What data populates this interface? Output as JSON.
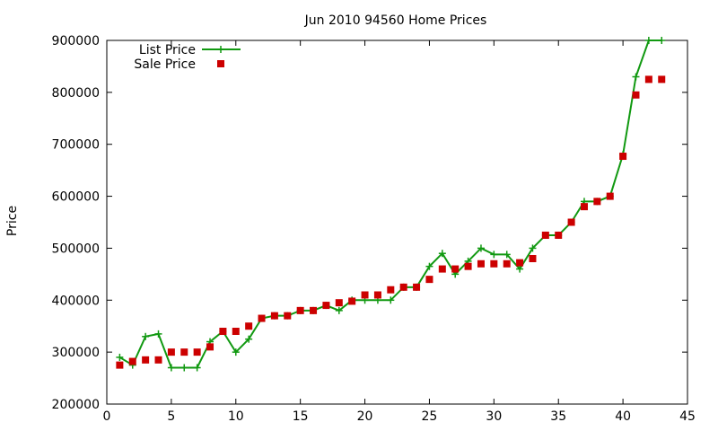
{
  "chart_data": {
    "type": "line",
    "title": "Jun 2010 94560 Home Prices",
    "xlabel": "",
    "ylabel": "Price",
    "xlim": [
      0,
      45
    ],
    "ylim": [
      200000,
      900000
    ],
    "xticks": [
      0,
      5,
      10,
      15,
      20,
      25,
      30,
      35,
      40,
      45
    ],
    "yticks": [
      200000,
      300000,
      400000,
      500000,
      600000,
      700000,
      800000,
      900000
    ],
    "grid": false,
    "legend_position": "top-left",
    "series": [
      {
        "name": "List Price",
        "style": "line+cross",
        "color": "#119911",
        "x": [
          1,
          2,
          3,
          4,
          5,
          6,
          7,
          8,
          9,
          10,
          11,
          12,
          13,
          14,
          15,
          16,
          17,
          18,
          19,
          20,
          21,
          22,
          23,
          24,
          25,
          26,
          27,
          28,
          29,
          30,
          31,
          32,
          33,
          34,
          35,
          36,
          37,
          38,
          39,
          40,
          41,
          42,
          43
        ],
        "y": [
          290000,
          275000,
          330000,
          335000,
          270000,
          270000,
          270000,
          320000,
          340000,
          300000,
          325000,
          365000,
          370000,
          370000,
          380000,
          380000,
          390000,
          380000,
          400000,
          400000,
          400000,
          400000,
          425000,
          425000,
          465000,
          490000,
          450000,
          475000,
          500000,
          488000,
          488000,
          460000,
          500000,
          525000,
          525000,
          550000,
          590000,
          590000,
          600000,
          680000,
          830000,
          900000,
          900000
        ]
      },
      {
        "name": "Sale Price",
        "style": "square-points",
        "color": "#cc0000",
        "x": [
          1,
          2,
          3,
          4,
          5,
          6,
          7,
          8,
          9,
          10,
          11,
          12,
          13,
          14,
          15,
          16,
          17,
          18,
          19,
          20,
          21,
          22,
          23,
          24,
          25,
          26,
          27,
          28,
          29,
          30,
          31,
          32,
          33,
          34,
          35,
          36,
          37,
          38,
          39,
          40,
          41,
          42,
          43
        ],
        "y": [
          275000,
          282000,
          285000,
          285000,
          300000,
          300000,
          300000,
          310000,
          340000,
          340000,
          350000,
          365000,
          370000,
          370000,
          380000,
          380000,
          390000,
          395000,
          398000,
          410000,
          410000,
          420000,
          425000,
          425000,
          440000,
          460000,
          460000,
          465000,
          470000,
          470000,
          470000,
          472000,
          480000,
          525000,
          525000,
          550000,
          580000,
          590000,
          600000,
          677000,
          795000,
          825000,
          825000
        ]
      }
    ]
  }
}
